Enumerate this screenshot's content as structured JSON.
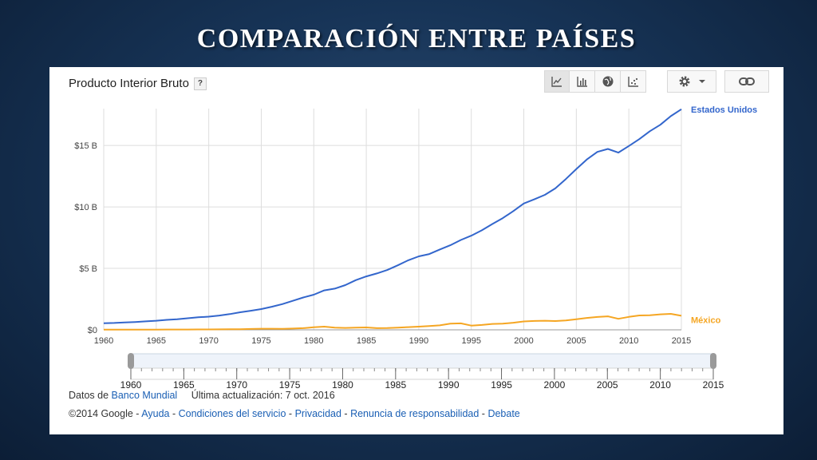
{
  "slide": {
    "title": "Comparación entre países"
  },
  "panel": {
    "title": "Producto Interior Bruto",
    "help": "?",
    "toolbar": [
      {
        "icon": "line-chart-icon",
        "active": true
      },
      {
        "icon": "bar-chart-icon",
        "active": false
      },
      {
        "icon": "globe-icon",
        "active": false
      },
      {
        "icon": "scatter-chart-icon",
        "active": false
      }
    ],
    "settings_icon": "gear-icon",
    "dropdown_icon": "caret-down-icon",
    "link_icon": "link-icon"
  },
  "navigator": {
    "ticks": [
      "1960",
      "1965",
      "1970",
      "1975",
      "1980",
      "1985",
      "1990",
      "1995",
      "2000",
      "2005",
      "2010",
      "2015"
    ]
  },
  "footer": {
    "source_prefix": "Datos de",
    "source_link": "Banco Mundial",
    "updated": "Última actualización: 7 oct. 2016",
    "copyright": "©2014 Google",
    "sep": "-",
    "links": [
      "Ayuda",
      "Condiciones del servicio",
      "Privacidad",
      "Renuncia de responsabilidad",
      "Debate"
    ]
  },
  "colors": {
    "us": "#3366cc",
    "mx": "#f5a623",
    "grid": "#dddddd",
    "link": "#1a5fb4"
  },
  "chart_data": {
    "type": "line",
    "title": "Producto Interior Bruto",
    "xlabel": "",
    "ylabel": "",
    "xlim": [
      1960,
      2015
    ],
    "ylim": [
      0,
      18
    ],
    "x_ticks": [
      "1960",
      "1965",
      "1970",
      "1975",
      "1980",
      "1985",
      "1990",
      "1995",
      "2000",
      "2005",
      "2010",
      "2015"
    ],
    "y_ticks": [
      {
        "value": 0,
        "label": "$0"
      },
      {
        "value": 5,
        "label": "$5 B"
      },
      {
        "value": 10,
        "label": "$10 B"
      },
      {
        "value": 15,
        "label": "$15 B"
      }
    ],
    "grid": true,
    "legend": "right, inline labels",
    "x": [
      1960,
      1961,
      1962,
      1963,
      1964,
      1965,
      1966,
      1967,
      1968,
      1969,
      1970,
      1971,
      1972,
      1973,
      1974,
      1975,
      1976,
      1977,
      1978,
      1979,
      1980,
      1981,
      1982,
      1983,
      1984,
      1985,
      1986,
      1987,
      1988,
      1989,
      1990,
      1991,
      1992,
      1993,
      1994,
      1995,
      1996,
      1997,
      1998,
      1999,
      2000,
      2001,
      2002,
      2003,
      2004,
      2005,
      2006,
      2007,
      2008,
      2009,
      2010,
      2011,
      2012,
      2013,
      2014,
      2015
    ],
    "series": [
      {
        "name": "Estados Unidos",
        "color": "#3366cc",
        "values": [
          0.54,
          0.56,
          0.6,
          0.64,
          0.69,
          0.74,
          0.81,
          0.86,
          0.94,
          1.02,
          1.07,
          1.16,
          1.28,
          1.43,
          1.55,
          1.69,
          1.88,
          2.09,
          2.36,
          2.63,
          2.86,
          3.21,
          3.35,
          3.64,
          4.04,
          4.35,
          4.59,
          4.87,
          5.25,
          5.66,
          5.98,
          6.17,
          6.54,
          6.88,
          7.31,
          7.66,
          8.1,
          8.61,
          9.09,
          9.66,
          10.28,
          10.62,
          10.98,
          11.51,
          12.27,
          13.09,
          13.86,
          14.48,
          14.72,
          14.42,
          14.96,
          15.52,
          16.16,
          16.69,
          17.39,
          17.95
        ]
      },
      {
        "name": "México",
        "color": "#f5a623",
        "values": [
          0.013,
          0.014,
          0.015,
          0.017,
          0.02,
          0.022,
          0.024,
          0.026,
          0.029,
          0.032,
          0.035,
          0.039,
          0.045,
          0.055,
          0.072,
          0.088,
          0.089,
          0.081,
          0.102,
          0.134,
          0.205,
          0.263,
          0.184,
          0.156,
          0.184,
          0.195,
          0.134,
          0.147,
          0.181,
          0.222,
          0.263,
          0.314,
          0.363,
          0.5,
          0.527,
          0.344,
          0.398,
          0.481,
          0.502,
          0.579,
          0.684,
          0.724,
          0.741,
          0.713,
          0.77,
          0.866,
          0.966,
          1.043,
          1.1,
          0.895,
          1.051,
          1.171,
          1.186,
          1.262,
          1.298,
          1.144
        ]
      }
    ]
  }
}
